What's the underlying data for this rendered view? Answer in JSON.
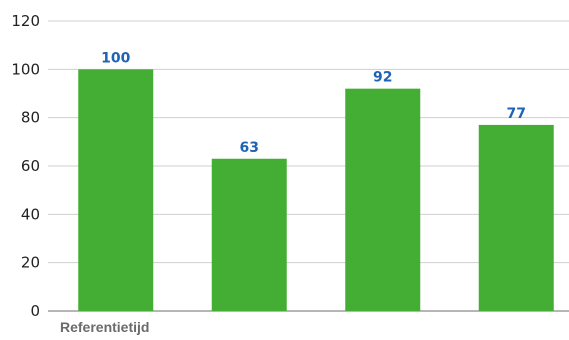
{
  "chart_data": {
    "type": "bar",
    "categories": [
      "Referentietijd",
      "",
      "",
      ""
    ],
    "values": [
      100,
      63,
      92,
      77
    ],
    "data_labels": [
      "100",
      "63",
      "92",
      "77"
    ],
    "title": "",
    "xlabel": "",
    "ylabel": "",
    "ylim": [
      0,
      120
    ],
    "yticks": [
      0,
      20,
      40,
      60,
      80,
      100,
      120
    ],
    "ytick_labels": [
      "0",
      "20",
      "40",
      "60",
      "80",
      "100",
      "120"
    ],
    "grid": "horizontal",
    "legend": "none",
    "colors": {
      "bar": "#43ad34",
      "data_label": "#1f63b5",
      "grid": "#cfcfcf",
      "axis": "#8a8a8a"
    }
  }
}
